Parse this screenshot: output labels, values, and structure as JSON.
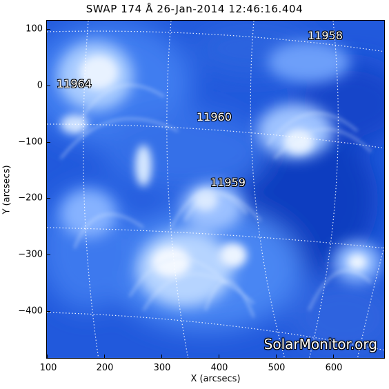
{
  "title": "SWAP 174 Å 26-Jan-2014 12:46:16.404",
  "axes": {
    "xlabel": "X (arcsecs)",
    "ylabel": "Y (arcsecs)",
    "xticks": [
      "100",
      "200",
      "300",
      "400",
      "500",
      "600"
    ],
    "yticks": [
      "100",
      "0",
      "−100",
      "−200",
      "−300",
      "−400"
    ]
  },
  "regions": {
    "ar_11958": "11958",
    "ar_11964": "11964",
    "ar_11960": "11960",
    "ar_11959": "11959"
  },
  "watermark": "SolarMonitor.org",
  "colors": {
    "background_blue": "#1a4fd6",
    "highlight": "#ffffff",
    "grid": "#ffffff"
  }
}
